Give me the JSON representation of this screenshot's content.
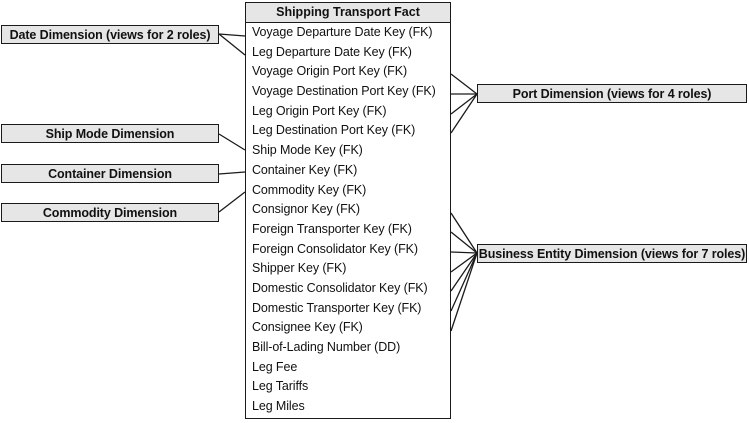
{
  "fact_table": {
    "title": "Shipping Transport Fact",
    "rows": [
      "Voyage Departure Date Key (FK)",
      "Leg Departure Date Key (FK)",
      "Voyage Origin Port Key (FK)",
      "Voyage Destination Port Key (FK)",
      "Leg Origin Port Key (FK)",
      "Leg Destination Port Key (FK)",
      "Ship Mode Key (FK)",
      "Container Key (FK)",
      "Commodity Key (FK)",
      "Consignor Key (FK)",
      "Foreign Transporter Key (FK)",
      "Foreign Consolidator Key (FK)",
      "Shipper Key (FK)",
      "Domestic Consolidator Key (FK)",
      "Domestic Transporter Key (FK)",
      "Consignee Key (FK)",
      "Bill-of-Lading Number (DD)",
      "Leg Fee",
      "Leg Tariffs",
      "Leg Miles"
    ]
  },
  "dimensions": {
    "date": "Date Dimension (views for 2 roles)",
    "ship_mode": "Ship Mode Dimension",
    "container": "Container Dimension",
    "commodity": "Commodity Dimension",
    "port": "Port Dimension (views for 4 roles)",
    "business_entity": "Business Entity Dimension (views for 7 roles)"
  },
  "colors": {
    "box_fill": "#e6e6e6",
    "line": "#1a1a1a"
  }
}
